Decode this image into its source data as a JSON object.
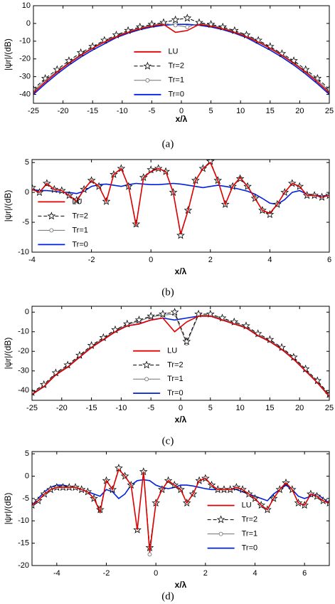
{
  "chart_data": [
    {
      "type": "line",
      "caption": "(a)",
      "x_label": "x/λ",
      "y_label": "|ψr|/(dB)",
      "x": [
        -25,
        -23,
        -21,
        -19,
        -17,
        -15,
        -13,
        -11,
        -9,
        -7,
        -5,
        -3,
        -1,
        1,
        3,
        5,
        7,
        9,
        11,
        13,
        15,
        17,
        19,
        21,
        23,
        25
      ],
      "xlim": [
        -25,
        25
      ],
      "xticks": [
        -25,
        -20,
        -15,
        -10,
        -5,
        0,
        5,
        10,
        15,
        20,
        25
      ],
      "ylim": [
        -45,
        10
      ],
      "yticks": [
        -40,
        -30,
        -20,
        -10,
        0,
        10
      ],
      "legend_position": "lower center",
      "series": [
        {
          "name": "LU",
          "color": "#e00000",
          "values": [
            -39,
            -33,
            -27.5,
            -22.5,
            -18,
            -14,
            -10.5,
            -7.5,
            -5,
            -3,
            -1.5,
            -0.5,
            -5,
            -4,
            -0.5,
            -1.5,
            -3,
            -5,
            -7.5,
            -10.5,
            -14,
            -18,
            -22.5,
            -27.5,
            -33,
            -39
          ]
        },
        {
          "name": "Tr=2",
          "color": "#000000",
          "marker": "star",
          "dash": true,
          "values": [
            -37,
            -31,
            -26,
            -21,
            -16.5,
            -13,
            -9.5,
            -6.5,
            -4,
            -2,
            -0.5,
            0.5,
            2,
            3,
            0.5,
            -0.5,
            -2,
            -4,
            -6.5,
            -9.5,
            -13,
            -17,
            -21,
            -26,
            -31,
            -37
          ]
        },
        {
          "name": "Tr=1",
          "color": "#707070",
          "marker": "circle",
          "values": [
            -38,
            -32,
            -27,
            -22,
            -17.5,
            -13.5,
            -10,
            -7,
            -4.5,
            -2.5,
            -1,
            0,
            -1,
            -2,
            0,
            -1,
            -2.5,
            -4.5,
            -7,
            -10,
            -13.5,
            -17.5,
            -22,
            -27,
            -32,
            -38
          ]
        },
        {
          "name": "Tr=0",
          "color": "#0020e0",
          "values": [
            -40,
            -34,
            -28.5,
            -23.5,
            -19,
            -15,
            -11.5,
            -8,
            -5.5,
            -3.5,
            -2,
            -1,
            -0.5,
            -0.5,
            -1,
            -2,
            -3.5,
            -5.5,
            -8,
            -11.5,
            -15,
            -19,
            -23.5,
            -28.5,
            -34,
            -40
          ]
        }
      ]
    },
    {
      "type": "line",
      "caption": "(b)",
      "x_label": "x/λ",
      "y_label": "|ψr|/(dB)",
      "x": [
        -4,
        -3.75,
        -3.5,
        -3.25,
        -3,
        -2.75,
        -2.5,
        -2.25,
        -2,
        -1.75,
        -1.5,
        -1.25,
        -1,
        -0.75,
        -0.5,
        -0.25,
        0,
        0.25,
        0.5,
        0.75,
        1,
        1.25,
        1.5,
        1.75,
        2,
        2.25,
        2.5,
        2.75,
        3,
        3.25,
        3.5,
        3.75,
        4,
        4.25,
        4.5,
        4.75,
        5,
        5.25,
        5.5,
        5.75,
        6
      ],
      "xlim": [
        -4,
        6
      ],
      "xticks": [
        -4,
        -2,
        0,
        2,
        4,
        6
      ],
      "ylim": [
        -10,
        5.5
      ],
      "yticks": [
        -10,
        -5,
        0,
        5
      ],
      "legend_position": "lower left",
      "series": [
        {
          "name": "LU",
          "color": "#e00000",
          "values": [
            0.5,
            0,
            1.5,
            0.5,
            0.3,
            -0.5,
            -1.5,
            0.5,
            2,
            1,
            -1.5,
            3,
            4,
            1,
            -5.5,
            2.5,
            3.5,
            4,
            3.5,
            0,
            -7,
            -3,
            2,
            4,
            5,
            2,
            -2,
            1,
            2.5,
            1,
            -1,
            -3,
            -3.5,
            -2,
            0,
            1.5,
            1,
            -0.5,
            -0.5,
            -0.8,
            -0.5
          ]
        },
        {
          "name": "Tr=2",
          "color": "#000000",
          "marker": "star",
          "dash": true,
          "values": [
            0.8,
            0,
            1.5,
            0.5,
            0.3,
            -0.5,
            -1.3,
            0.5,
            2,
            1,
            -1.5,
            3,
            4,
            1,
            -5.3,
            2.5,
            3.8,
            4,
            3.5,
            0,
            -7.2,
            -3,
            2,
            4,
            5.2,
            2,
            -2,
            1,
            2.3,
            1,
            -1,
            -3,
            -3.7,
            -2,
            0,
            1.5,
            1,
            -0.5,
            -0.5,
            -0.8,
            -0.5
          ]
        },
        {
          "name": "Tr=1",
          "color": "#707070",
          "marker": "circle",
          "values": [
            0.6,
            0,
            1.4,
            0.5,
            0.3,
            -0.5,
            -1.4,
            0.5,
            2,
            1,
            -1.5,
            3,
            4,
            1,
            -5.4,
            2.5,
            3.6,
            4,
            3.5,
            0,
            -7.1,
            -3,
            2,
            4,
            5.1,
            2,
            -2,
            1,
            2.4,
            1,
            -1,
            -3,
            -3.6,
            -2,
            0,
            1.5,
            1,
            -0.5,
            -0.5,
            -0.8,
            -0.5
          ]
        },
        {
          "name": "Tr=0",
          "color": "#0020e0",
          "values": [
            0.5,
            0.3,
            0.3,
            0.2,
            0,
            0,
            -0.2,
            0.2,
            1,
            1.3,
            1.4,
            1.2,
            1,
            1.3,
            1.5,
            1.4,
            1.3,
            1.3,
            1.4,
            1.5,
            1.4,
            1.2,
            1,
            0.8,
            1,
            1.2,
            1,
            0.8,
            0.5,
            0.2,
            -0.3,
            -1,
            -1.8,
            -2,
            -1.2,
            0,
            0.3,
            -0.3,
            -0.5,
            -0.6,
            -0.5
          ]
        }
      ]
    },
    {
      "type": "line",
      "caption": "(c)",
      "x_label": "x/λ",
      "y_label": "|ψr|/(dB)",
      "x": [
        -25,
        -23,
        -21,
        -19,
        -17,
        -15,
        -13,
        -11,
        -9,
        -7,
        -5,
        -3,
        -1,
        1,
        3,
        5,
        7,
        9,
        11,
        13,
        15,
        17,
        19,
        21,
        23,
        25
      ],
      "xlim": [
        -25,
        25
      ],
      "xticks": [
        -25,
        -20,
        -15,
        -10,
        -5,
        0,
        5,
        10,
        15,
        20,
        25
      ],
      "ylim": [
        -45,
        3
      ],
      "yticks": [
        -40,
        -30,
        -20,
        -10,
        0
      ],
      "legend_position": "lower center",
      "series": [
        {
          "name": "LU",
          "color": "#e00000",
          "values": [
            -42,
            -38,
            -32,
            -28,
            -23,
            -18,
            -14,
            -10,
            -7,
            -6,
            -4,
            -3,
            -10,
            -5,
            -2,
            -2,
            -4,
            -6,
            -8,
            -12,
            -15,
            -19,
            -24,
            -30,
            -36,
            -43
          ]
        },
        {
          "name": "Tr=2",
          "color": "#000000",
          "marker": "star",
          "dash": true,
          "values": [
            -41,
            -37,
            -31,
            -27,
            -22,
            -17,
            -13,
            -9,
            -6,
            -4,
            -2,
            -1,
            0,
            -15,
            -1,
            -1,
            -3,
            -5,
            -7,
            -11,
            -14,
            -18,
            -23,
            -29,
            -35,
            -42
          ]
        },
        {
          "name": "Tr=1",
          "color": "#707070",
          "marker": "circle",
          "values": [
            -41.5,
            -37.5,
            -31.5,
            -27.5,
            -22.5,
            -17.5,
            -13.5,
            -9.5,
            -6.5,
            -4.5,
            -2.5,
            -1.5,
            -1,
            -16,
            -1.5,
            -1.5,
            -3.5,
            -5.5,
            -7.5,
            -11.5,
            -14.5,
            -18.5,
            -23.5,
            -29.5,
            -35.5,
            -42.5
          ]
        },
        {
          "name": "Tr=0",
          "color": "#0020e0",
          "values": [
            -42,
            -38,
            -32,
            -28,
            -23,
            -18,
            -14,
            -10,
            -7,
            -6,
            -4,
            -3,
            -4,
            -3,
            -2,
            -2,
            -4,
            -6,
            -8,
            -12,
            -15,
            -19,
            -24,
            -30,
            -36,
            -43
          ]
        }
      ]
    },
    {
      "type": "line",
      "caption": "(d)",
      "x_label": "x/λ",
      "y_label": "|ψr|/(dB)",
      "x": [
        -5,
        -4.75,
        -4.5,
        -4.25,
        -4,
        -3.75,
        -3.5,
        -3.25,
        -3,
        -2.75,
        -2.5,
        -2.25,
        -2,
        -1.75,
        -1.5,
        -1.25,
        -1,
        -0.75,
        -0.5,
        -0.25,
        0,
        0.25,
        0.5,
        0.75,
        1,
        1.25,
        1.5,
        1.75,
        2,
        2.25,
        2.5,
        2.75,
        3,
        3.25,
        3.5,
        3.75,
        4,
        4.25,
        4.5,
        4.75,
        5,
        5.25,
        5.5,
        5.75,
        6,
        6.25,
        6.5,
        6.75,
        7
      ],
      "xlim": [
        -5,
        7
      ],
      "xticks": [
        -4,
        -2,
        0,
        2,
        4,
        6
      ],
      "ylim": [
        -20,
        5.5
      ],
      "yticks": [
        -20,
        -15,
        -10,
        -5,
        0,
        5
      ],
      "legend_position": "lower right",
      "series": [
        {
          "name": "LU",
          "color": "#e00000",
          "values": [
            -6.5,
            -5.5,
            -4,
            -3,
            -2.5,
            -2.5,
            -2.5,
            -2.5,
            -3,
            -3.5,
            -5,
            -8,
            -1,
            -3,
            1.5,
            0,
            -2,
            -12,
            1,
            -17,
            -6,
            -3,
            -1,
            -2,
            -3,
            -6,
            -4,
            -1,
            -0.5,
            -2,
            -3,
            -3,
            -3,
            -2.5,
            -3,
            -4,
            -5,
            -6.5,
            -7.5,
            -5,
            -3,
            -1.5,
            -3,
            -6,
            -6.5,
            -4,
            -4.5,
            -5.5,
            -6
          ]
        },
        {
          "name": "Tr=2",
          "color": "#000000",
          "marker": "star",
          "dash": true,
          "values": [
            -6.5,
            -5.5,
            -4,
            -3,
            -2.5,
            -2.5,
            -2.5,
            -2.5,
            -3,
            -3.5,
            -5,
            -7.5,
            -1,
            -3,
            1.8,
            0,
            -2,
            -12,
            1,
            -16,
            -6,
            -3,
            -1,
            -2,
            -3,
            -6,
            -4,
            -1,
            -0.5,
            -2,
            -3,
            -3,
            -3,
            -2.5,
            -3,
            -4,
            -5,
            -6.5,
            -7.5,
            -5,
            -3,
            -1.5,
            -3,
            -6,
            -6.5,
            -4,
            -4.5,
            -5.5,
            -6
          ]
        },
        {
          "name": "Tr=1",
          "color": "#707070",
          "marker": "circle",
          "values": [
            -6.5,
            -5.5,
            -4,
            -3,
            -2.5,
            -2.5,
            -2.5,
            -2.5,
            -3,
            -3.5,
            -5,
            -7.8,
            -1,
            -3,
            1.6,
            0,
            -2,
            -12,
            1,
            -17.5,
            -6,
            -3,
            -1,
            -2,
            -3,
            -6,
            -4,
            -1,
            -0.5,
            -2,
            -3,
            -3,
            -3,
            -2.5,
            -3,
            -4,
            -5,
            -6.5,
            -7.5,
            -5,
            -3,
            -1.5,
            -3,
            -6,
            -6.5,
            -4,
            -4.5,
            -5.5,
            -6
          ]
        },
        {
          "name": "Tr=0",
          "color": "#0020e0",
          "values": [
            -6.5,
            -5,
            -3.5,
            -2.5,
            -2,
            -2,
            -2.3,
            -2.5,
            -3,
            -3.5,
            -4,
            -4.5,
            -3,
            -3.5,
            -5,
            -4,
            -2,
            -1,
            -0.8,
            -1,
            -2,
            -2.5,
            -2.8,
            -2.5,
            -2,
            -2,
            -2.2,
            -2.5,
            -2.8,
            -3,
            -3,
            -3,
            -2.8,
            -3,
            -3.5,
            -4,
            -4.5,
            -5,
            -5.5,
            -4,
            -3,
            -2,
            -3,
            -4.5,
            -5,
            -4.5,
            -4,
            -5,
            -6
          ]
        }
      ]
    }
  ]
}
